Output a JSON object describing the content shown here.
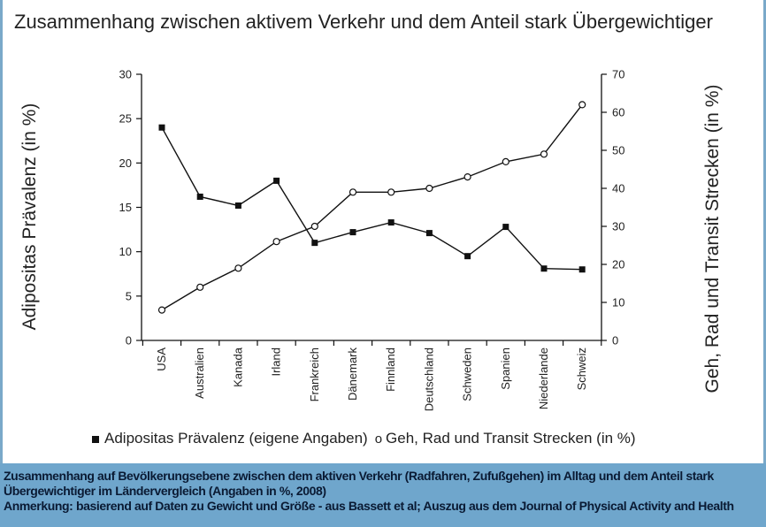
{
  "title": "Zusammenhang zwischen aktivem Verkehr und dem Anteil stark Übergewichtiger",
  "legend": {
    "series1": "Adipositas Prävalenz (eigene Angaben)",
    "series2": "Geh, Rad und Transit Strecken (in %)"
  },
  "caption": {
    "line1": "Zusammenhang auf Bevölkerungsebene zwischen dem aktiven Verkehr (Radfahren, Zufußgehen) im Alltag und dem Anteil stark",
    "line2": "Übergewichtiger im Ländervergleich (Angaben in %, 2008)",
    "line3": "Anmerkung: basierend auf Daten zu Gewicht und Größe - aus Bassett et al; Auszug aus dem Journal of Physical Activity and Health"
  },
  "colors": {
    "line": "#111111",
    "caption_bg": "#6fa6cc",
    "border": "#7aa9c9"
  },
  "chart_data": {
    "type": "line",
    "categories": [
      "USA",
      "Australien",
      "Kanada",
      "Irland",
      "Frankreich",
      "Dänemark",
      "Finnland",
      "Deutschland",
      "Schweden",
      "Spanien",
      "Niederlande",
      "Schweiz"
    ],
    "ylabel": "Adipositas Prävalenz (in %)",
    "y2label": "Geh, Rad und Transit Strecken (in %)",
    "ylim": [
      0,
      30
    ],
    "y2lim": [
      0,
      70
    ],
    "yticks": [
      0,
      5,
      10,
      15,
      20,
      25,
      30
    ],
    "y2ticks": [
      0,
      10,
      20,
      30,
      40,
      50,
      60,
      70
    ],
    "series": [
      {
        "name": "Adipositas Prävalenz (eigene Angaben)",
        "axis": "left",
        "marker": "square",
        "values": [
          24.0,
          16.2,
          15.2,
          18.0,
          11.0,
          12.2,
          13.3,
          12.1,
          9.5,
          12.8,
          8.1,
          8.0
        ]
      },
      {
        "name": "Geh, Rad und Transit Strecken (in %)",
        "axis": "right",
        "marker": "circle",
        "values": [
          8,
          14,
          19,
          26,
          30,
          39,
          39,
          40,
          43,
          47,
          49,
          62
        ]
      }
    ],
    "grid": false,
    "legend_position": "bottom"
  }
}
